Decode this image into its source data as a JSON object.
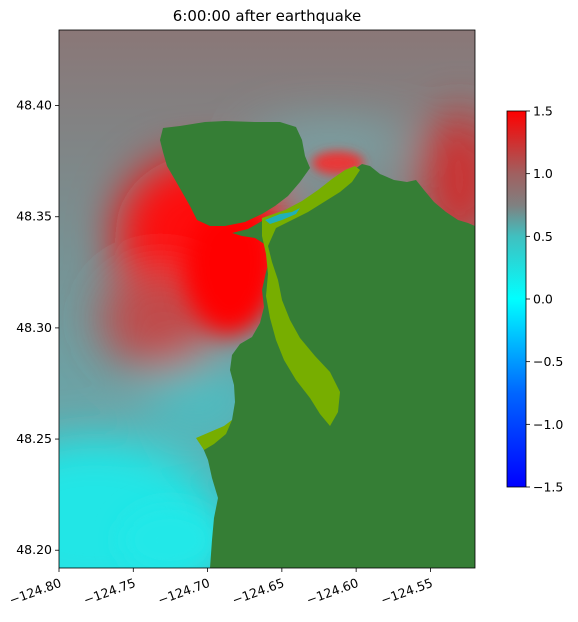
{
  "chart_data": {
    "type": "heatmap",
    "title": "6:00:00 after earthquake",
    "xlabel": "",
    "ylabel": "",
    "xlim": [
      -124.8,
      -124.52
    ],
    "ylim": [
      48.192,
      48.434
    ],
    "x_ticks": [
      {
        "value": -124.8,
        "label": "−124.80"
      },
      {
        "value": -124.75,
        "label": "−124.75"
      },
      {
        "value": -124.7,
        "label": "−124.70"
      },
      {
        "value": -124.65,
        "label": "−124.65"
      },
      {
        "value": -124.6,
        "label": "−124.60"
      },
      {
        "value": -124.55,
        "label": "−124.55"
      }
    ],
    "y_ticks": [
      {
        "value": 48.2,
        "label": "48.20"
      },
      {
        "value": 48.25,
        "label": "48.25"
      },
      {
        "value": 48.3,
        "label": "48.30"
      },
      {
        "value": 48.35,
        "label": "48.35"
      },
      {
        "value": 48.4,
        "label": "48.40"
      }
    ],
    "colorbar": {
      "range": [
        -1.5,
        1.5
      ],
      "ticks": [
        {
          "value": 1.5,
          "label": "1.5"
        },
        {
          "value": 1.0,
          "label": "1.0"
        },
        {
          "value": 0.5,
          "label": "0.5"
        },
        {
          "value": 0.0,
          "label": "0.0"
        },
        {
          "value": -0.5,
          "label": "−0.5"
        },
        {
          "value": -1.0,
          "label": "−1.0"
        },
        {
          "value": -1.5,
          "label": "−1.5"
        }
      ],
      "colors": [
        {
          "value": -1.5,
          "color": "#0000ff"
        },
        {
          "value": -0.75,
          "color": "#0066ff"
        },
        {
          "value": 0.0,
          "color": "#00ffff"
        },
        {
          "value": 0.5,
          "color": "#40c0c0"
        },
        {
          "value": 0.75,
          "color": "#808080"
        },
        {
          "value": 1.0,
          "color": "#a06060"
        },
        {
          "value": 1.5,
          "color": "#ff0000"
        }
      ]
    },
    "land_color": "#357e35",
    "intertidal_color": "#77ae00",
    "grid": false
  }
}
